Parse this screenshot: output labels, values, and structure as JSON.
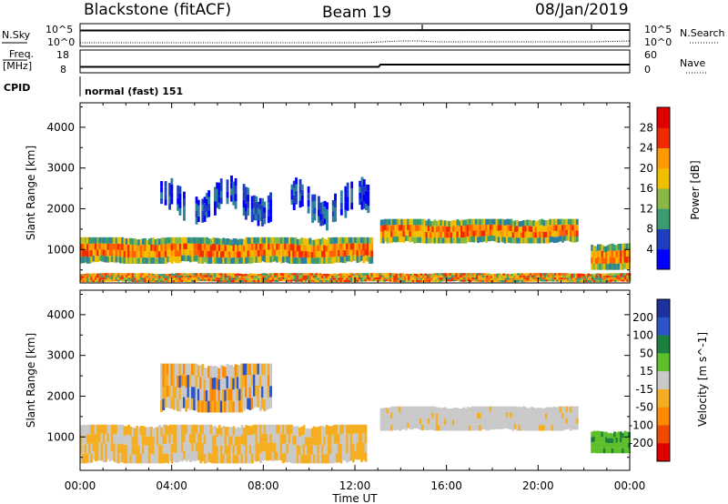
{
  "header": {
    "station": "Blackstone (fitACF)",
    "beam": "Beam 19",
    "date": "08/Jan/2019"
  },
  "param_panel": {
    "nsky_label": "N.Sky",
    "nsearch_label": "N.Search",
    "noise_ticks": [
      "10^5",
      "10^0"
    ],
    "freq_label": "Freq.",
    "freq_unit": "[MHz]",
    "freq_ticks": [
      "18",
      "8"
    ],
    "nave_label": "Nave",
    "nave_ticks": [
      "60",
      "0"
    ],
    "cpid_label": "CPID",
    "cpid_value": "normal (fast) 151"
  },
  "colors": {
    "power_scale": [
      "#0000ff",
      "#1e3fbf",
      "#2f7f9f",
      "#3c9a70",
      "#88b843",
      "#f0c000",
      "#ff9b00",
      "#ff6100",
      "#f12b00",
      "#e00000"
    ],
    "velocity_scale": [
      "#1e2f9e",
      "#2b55c8",
      "#1b7f40",
      "#5fbf2a",
      "#c9c9c9",
      "#f5ae21",
      "#ff8a00",
      "#f04a00",
      "#e00000"
    ]
  },
  "chart_data": [
    {
      "type": "heatmap",
      "title": "Power",
      "xlabel": "",
      "ylabel": "Slant Range [km]",
      "y_ticks": [
        "1000",
        "2000",
        "3000",
        "4000"
      ],
      "ylim": [
        180,
        4600
      ],
      "x_ticks": [
        "00:00",
        "04:00",
        "08:00",
        "12:00",
        "16:00",
        "20:00",
        "00:00"
      ],
      "colorbar_label": "Power [dB]",
      "colorbar_ticks": [
        "4",
        "8",
        "12",
        "16",
        "20",
        "24",
        "28"
      ],
      "colorbar_range": [
        0,
        32
      ],
      "echo_regions": [
        {
          "t": [
            0.0,
            12.7
          ],
          "range_km": [
            650,
            1300
          ],
          "level": "moderate-strong"
        },
        {
          "t": [
            3.5,
            8.3
          ],
          "range_km": [
            1600,
            2800
          ],
          "level": "weak"
        },
        {
          "t": [
            9.2,
            12.6
          ],
          "range_km": [
            1500,
            2800
          ],
          "level": "weak"
        },
        {
          "t": [
            13.1,
            21.7
          ],
          "range_km": [
            1150,
            1750
          ],
          "level": "moderate-strong"
        },
        {
          "t": [
            22.3,
            24.0
          ],
          "range_km": [
            500,
            1150
          ],
          "level": "moderate-strong"
        },
        {
          "t": [
            0.0,
            24.0
          ],
          "range_km": [
            200,
            420
          ],
          "level": "ground scatter"
        }
      ]
    },
    {
      "type": "heatmap",
      "title": "Velocity",
      "xlabel": "Time UT",
      "ylabel": "Slant Range [km]",
      "y_ticks": [
        "1000",
        "2000",
        "3000",
        "4000"
      ],
      "ylim": [
        180,
        4600
      ],
      "x_ticks": [
        "00:00",
        "04:00",
        "08:00",
        "12:00",
        "16:00",
        "20:00",
        "00:00"
      ],
      "colorbar_label": "Velocity [m s^-1]",
      "colorbar_ticks": [
        "200",
        "100",
        "50",
        "15",
        "-15",
        "-50",
        "-100",
        "-200"
      ],
      "echo_regions": [
        {
          "t": [
            0.0,
            12.5
          ],
          "range_km": [
            350,
            1300
          ],
          "velocity": "-15 to -50 / ~0"
        },
        {
          "t": [
            3.5,
            8.3
          ],
          "range_km": [
            1600,
            2800
          ],
          "velocity": "mixed"
        },
        {
          "t": [
            13.1,
            21.7
          ],
          "range_km": [
            1150,
            1750
          ],
          "velocity": "-15 to 15"
        },
        {
          "t": [
            22.3,
            24.0
          ],
          "range_km": [
            600,
            1150
          ],
          "velocity": "15 to 50"
        }
      ]
    }
  ]
}
